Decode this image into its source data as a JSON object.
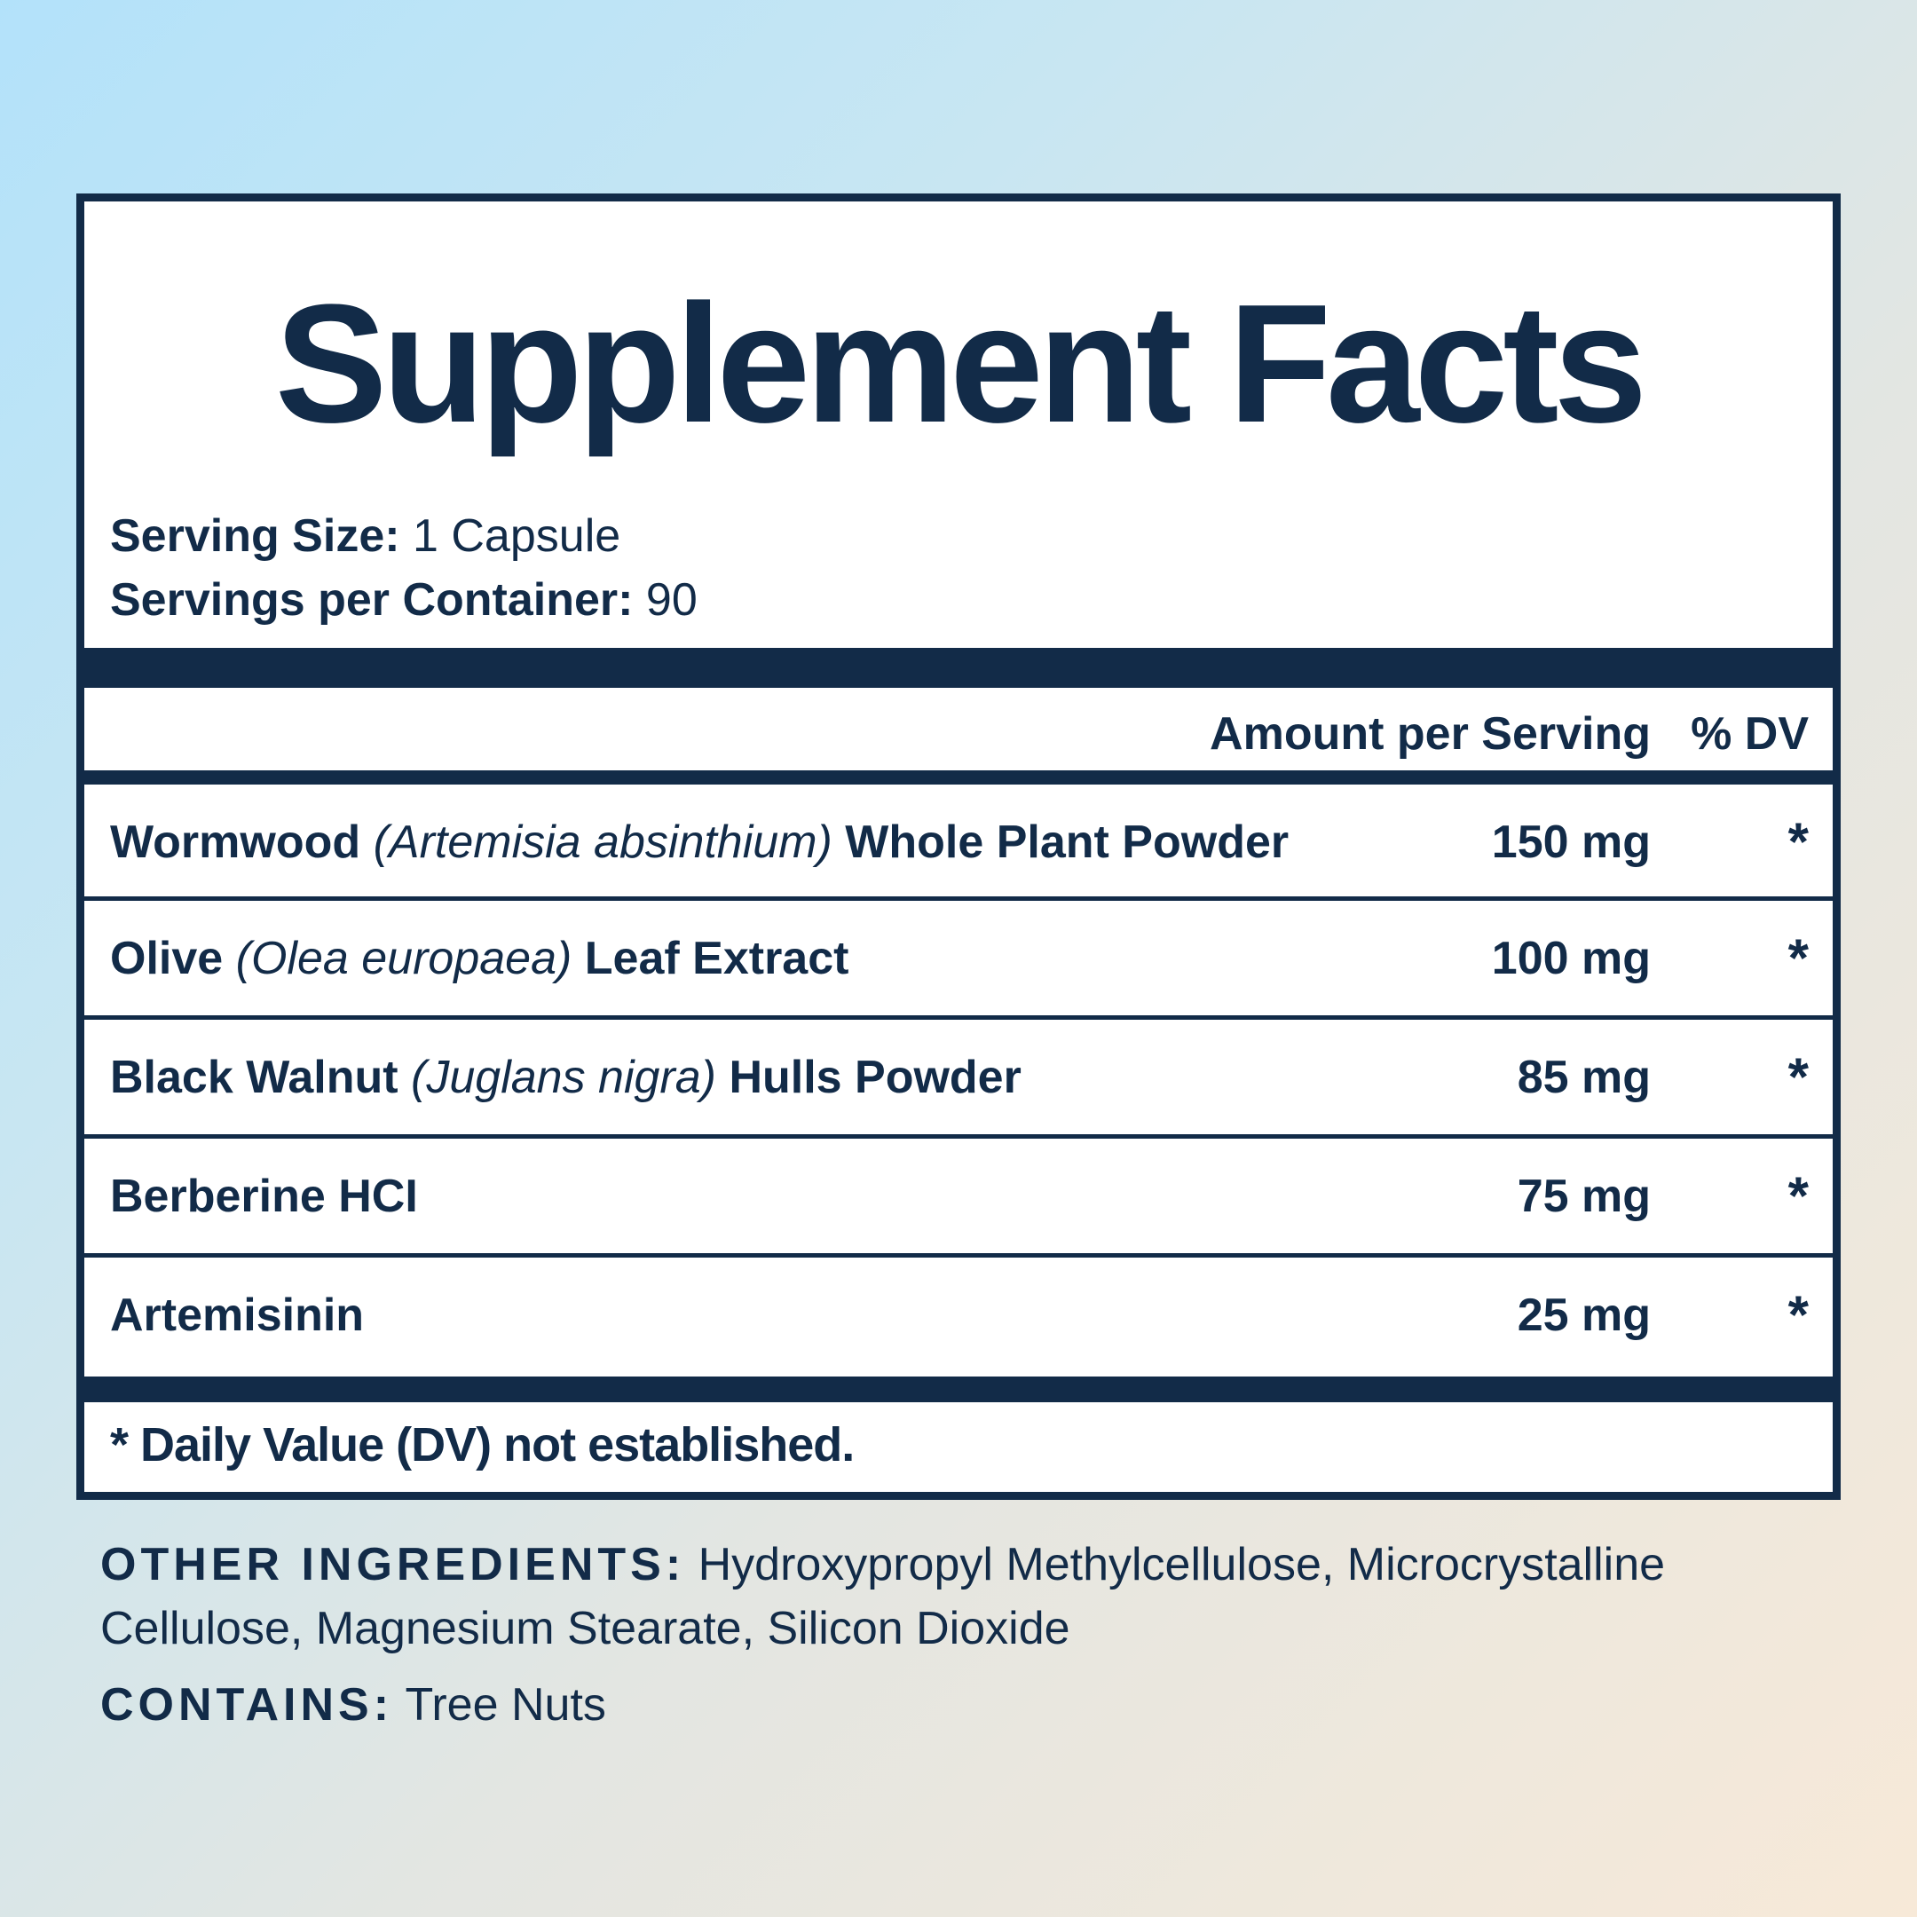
{
  "title": "Supplement Facts",
  "serving": {
    "size_label": "Serving Size:",
    "size_value": "1 Capsule",
    "per_container_label": "Servings per Container:",
    "per_container_value": "90"
  },
  "table": {
    "header_amount": "Amount per Serving",
    "header_dv": "% DV",
    "rows": [
      {
        "name": "Wormwood",
        "latin": "(Artemisia absinthium)",
        "suffix": "Whole Plant Powder",
        "amount": "150 mg",
        "dv": "*"
      },
      {
        "name": "Olive",
        "latin": "(Olea europaea)",
        "suffix": "Leaf Extract",
        "amount": "100 mg",
        "dv": "*"
      },
      {
        "name": "Black Walnut",
        "latin": "(Juglans nigra)",
        "suffix": "Hulls Powder",
        "amount": "85 mg",
        "dv": "*"
      },
      {
        "name": "Berberine HCI",
        "latin": "",
        "suffix": "",
        "amount": "75 mg",
        "dv": "*"
      },
      {
        "name": "Artemisinin",
        "latin": "",
        "suffix": "",
        "amount": "25 mg",
        "dv": "*"
      }
    ]
  },
  "footnote": "* Daily Value (DV) not established.",
  "other_ingredients": {
    "label": "OTHER INGREDIENTS:",
    "value": "Hydroxypropyl Methylcellulose, Microcrystalline Cellulose, Magnesium Stearate, Silicon Dioxide"
  },
  "contains": {
    "label": "CONTAINS:",
    "value": "Tree Nuts"
  },
  "colors": {
    "navy": "#122b48",
    "label_background": "#ffffff"
  }
}
